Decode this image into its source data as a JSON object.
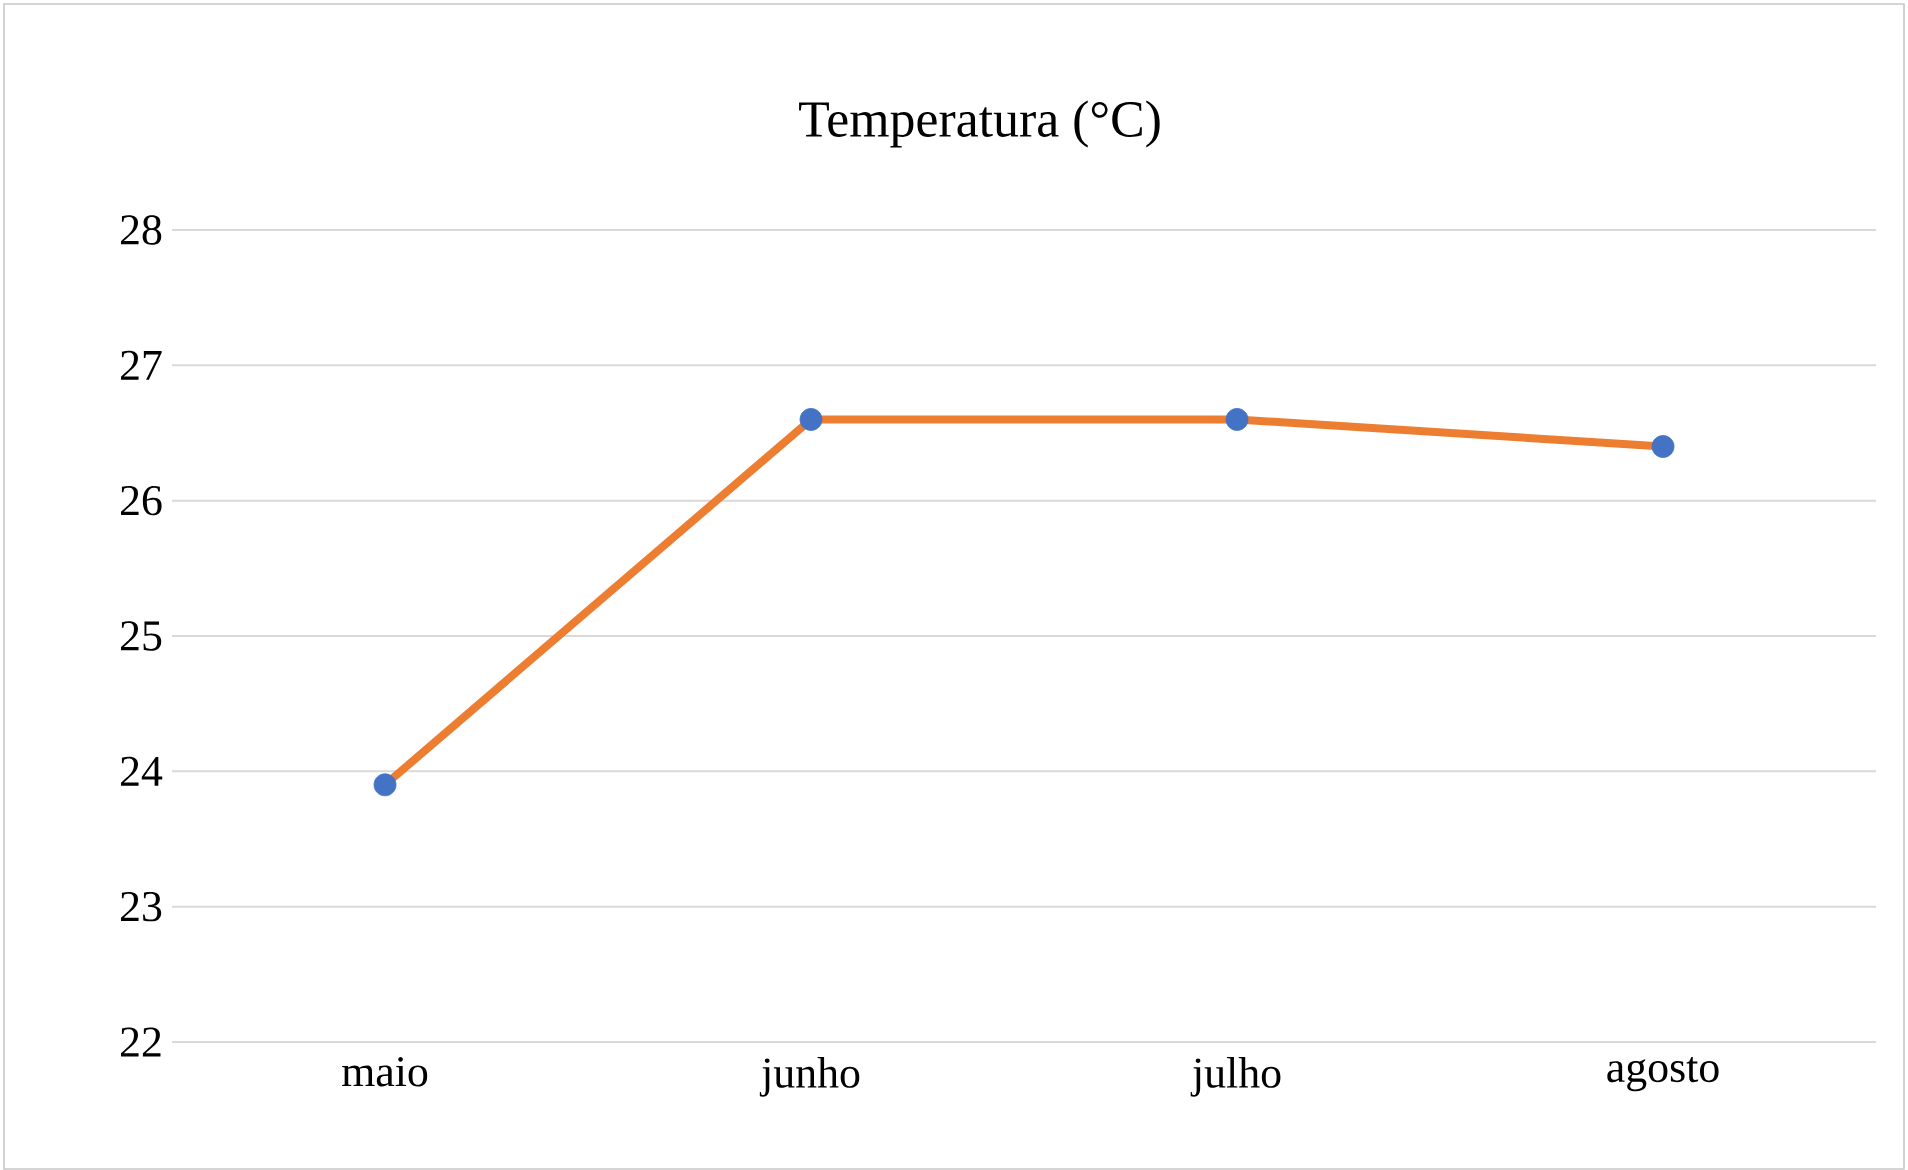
{
  "chart_data": {
    "type": "line",
    "title": "Temperatura (°C)",
    "categories": [
      "maio",
      "junho",
      "julho",
      "agosto"
    ],
    "series": [
      {
        "color": "#ed7d31",
        "colors": [
          "#4472c4",
          "#4472c4",
          "#4472c4",
          "#4472c4"
        ],
        "values": [
          23.9,
          26.6,
          26.6,
          26.4
        ]
      }
    ],
    "ylim": [
      22,
      28
    ],
    "yticks": [
      22,
      23,
      24,
      25,
      26,
      27,
      28
    ],
    "grid": "y",
    "marker": "circle",
    "line_style": "solid"
  }
}
